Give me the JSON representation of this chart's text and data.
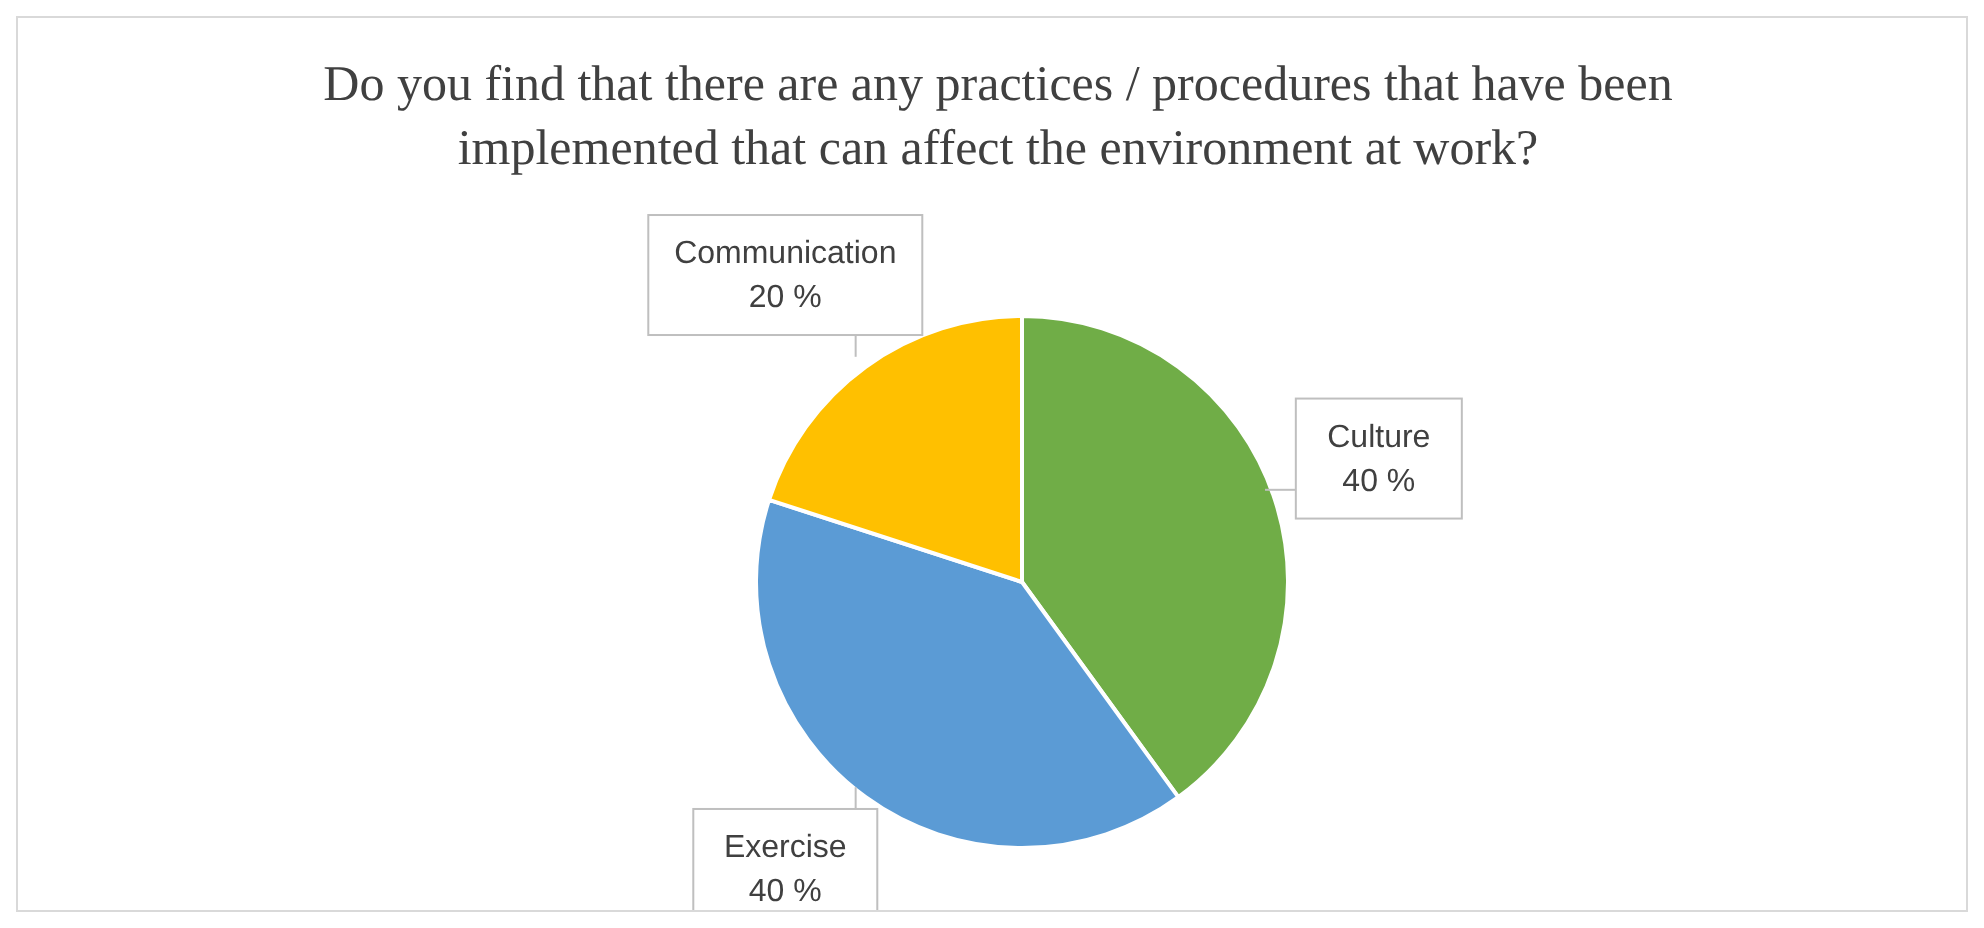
{
  "chart_data": {
    "type": "pie",
    "title": "Do you find that there are any practices / procedures that have been implemented that can affect the environment at work?",
    "categories": [
      "Culture",
      "Exercise",
      "Communication"
    ],
    "values": [
      40,
      40,
      20
    ],
    "value_labels": [
      "40 %",
      "40 %",
      "20 %"
    ],
    "colors": [
      "#70ad47",
      "#5b9bd5",
      "#ffc000"
    ],
    "legend": false
  }
}
